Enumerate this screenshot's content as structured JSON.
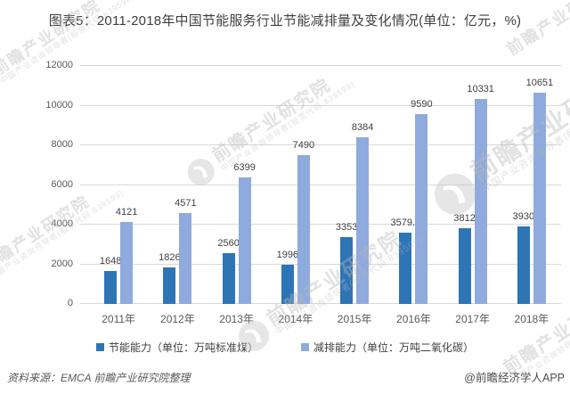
{
  "title": "图表5：2011-2018年中国节能服务行业节能减排量及变化情况(单位：亿元，%)",
  "chart_data": {
    "type": "bar",
    "categories": [
      "2011年",
      "2012年",
      "2013年",
      "2014年",
      "2015年",
      "2016年",
      "2017年",
      "2018年"
    ],
    "series": [
      {
        "name": "节能能力（单位：万吨标准煤）",
        "color": "#2E75B6",
        "values": [
          1648,
          1826,
          2560,
          1996,
          3353,
          3579.5,
          3812,
          3930
        ]
      },
      {
        "name": "减排能力（单位：万吨二氧化碳）",
        "color": "#8FAADC",
        "values": [
          4121,
          4571,
          6399,
          7490,
          8384,
          9590,
          10331,
          10651
        ]
      }
    ],
    "ylim": [
      0,
      12000
    ],
    "ytick_step": 2000,
    "grid": true,
    "legend_position": "bottom",
    "gridline_color": "#d9d9d9"
  },
  "footer": {
    "source": "资料来源：EMCA 前瞻产业研究院整理",
    "credit": "@前瞻经济学人APP"
  },
  "watermark": {
    "text": "前瞻产业研究院",
    "subtext": "中国产业咨询领导者(股票代码:839599)"
  }
}
